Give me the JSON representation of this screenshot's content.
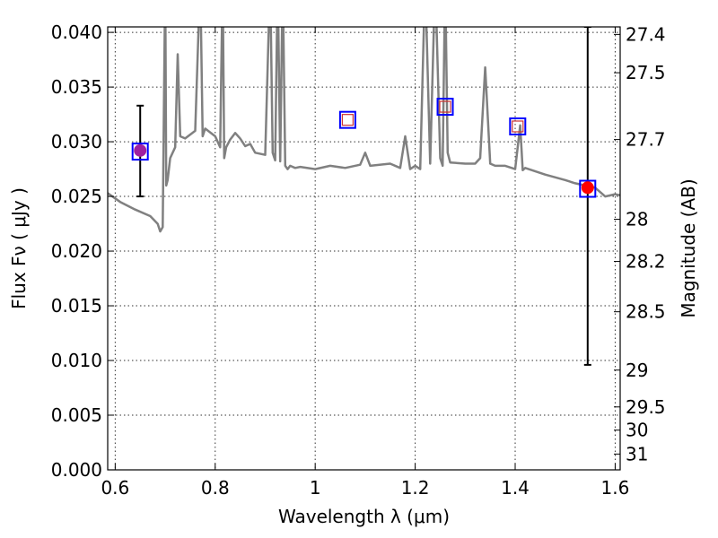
{
  "chart_data": {
    "type": "scatter",
    "title": "",
    "xlabel": "Wavelength  λ (μm)",
    "ylabel": "Flux  Fν  ( μJy )",
    "y2label": "Magnitude (AB)",
    "xlim": [
      0.585,
      1.61
    ],
    "ylim": [
      0.0,
      0.0405
    ],
    "grid": true,
    "x_ticks": [
      0.6,
      0.8,
      1.0,
      1.2,
      1.4,
      1.6
    ],
    "x_tick_labels": [
      "0.6",
      "0.8",
      "1",
      "1.2",
      "1.4",
      "1.6"
    ],
    "y_ticks": [
      0.0,
      0.005,
      0.01,
      0.015,
      0.02,
      0.025,
      0.03,
      0.035,
      0.04
    ],
    "y_tick_labels": [
      "0.000",
      "0.005",
      "0.010",
      "0.015",
      "0.020",
      "0.025",
      "0.030",
      "0.035",
      "0.040"
    ],
    "y2_ticks": [
      27.4,
      27.5,
      27.7,
      28,
      28.2,
      28.5,
      29,
      29.5,
      30,
      31
    ],
    "y2_tick_labels": [
      "27.4",
      "27.5",
      "27.7",
      "28",
      "28.2",
      "28.5",
      "29",
      "29.5",
      "30",
      "31"
    ],
    "colors": {
      "model": "#808080",
      "box": "#0000ff",
      "obs_purple": "#a020a0",
      "obs_red": "#ff0000",
      "pred_marker": "#cc3333",
      "errorbar": "#000000"
    },
    "model_spectrum": {
      "x": [
        0.585,
        0.61,
        0.64,
        0.67,
        0.685,
        0.69,
        0.695,
        0.7,
        0.702,
        0.705,
        0.71,
        0.72,
        0.725,
        0.73,
        0.74,
        0.76,
        0.77,
        0.775,
        0.78,
        0.8,
        0.81,
        0.815,
        0.818,
        0.822,
        0.83,
        0.84,
        0.85,
        0.86,
        0.87,
        0.88,
        0.9,
        0.91,
        0.915,
        0.92,
        0.925,
        0.93,
        0.935,
        0.94,
        0.945,
        0.95,
        0.96,
        0.97,
        1.0,
        1.03,
        1.06,
        1.09,
        1.1,
        1.11,
        1.15,
        1.17,
        1.18,
        1.19,
        1.2,
        1.21,
        1.22,
        1.23,
        1.24,
        1.25,
        1.255,
        1.26,
        1.265,
        1.27,
        1.3,
        1.32,
        1.33,
        1.34,
        1.35,
        1.36,
        1.38,
        1.4,
        1.41,
        1.415,
        1.42,
        1.46,
        1.5,
        1.52,
        1.54,
        1.56,
        1.58,
        1.6,
        1.61
      ],
      "y": [
        0.0253,
        0.0245,
        0.0238,
        0.0232,
        0.0225,
        0.0218,
        0.0222,
        0.045,
        0.026,
        0.0265,
        0.0285,
        0.0295,
        0.038,
        0.0305,
        0.0303,
        0.031,
        0.045,
        0.0305,
        0.0312,
        0.0305,
        0.0295,
        0.045,
        0.0285,
        0.0295,
        0.0302,
        0.0308,
        0.0303,
        0.0296,
        0.0298,
        0.029,
        0.0288,
        0.045,
        0.029,
        0.0283,
        0.045,
        0.0282,
        0.045,
        0.0278,
        0.0275,
        0.0278,
        0.0276,
        0.0277,
        0.0275,
        0.0278,
        0.0276,
        0.0279,
        0.029,
        0.0278,
        0.028,
        0.0276,
        0.0305,
        0.0275,
        0.0278,
        0.0275,
        0.045,
        0.028,
        0.045,
        0.0285,
        0.0278,
        0.045,
        0.029,
        0.0281,
        0.028,
        0.028,
        0.0285,
        0.0368,
        0.028,
        0.0278,
        0.0278,
        0.0275,
        0.0315,
        0.0274,
        0.0276,
        0.027,
        0.0265,
        0.0262,
        0.026,
        0.0258,
        0.025,
        0.0252,
        0.0251
      ]
    },
    "observed_points": [
      {
        "x": 0.65,
        "y": 0.0292,
        "yerr_low": 0.025,
        "yerr_high": 0.0333,
        "marker_color": "obs_purple"
      },
      {
        "x": 1.545,
        "y": 0.0258,
        "yerr_low": 0.0096,
        "yerr_high": 0.0405,
        "marker_color": "obs_red"
      }
    ],
    "model_boxes": [
      {
        "x": 0.65,
        "y": 0.0291
      },
      {
        "x": 1.065,
        "y": 0.032
      },
      {
        "x": 1.26,
        "y": 0.0332
      },
      {
        "x": 1.405,
        "y": 0.0314
      },
      {
        "x": 1.545,
        "y": 0.0257
      }
    ],
    "predicted_points": [
      {
        "x": 1.065,
        "y": 0.032
      },
      {
        "x": 1.26,
        "y": 0.0332
      },
      {
        "x": 1.405,
        "y": 0.0314
      }
    ]
  }
}
